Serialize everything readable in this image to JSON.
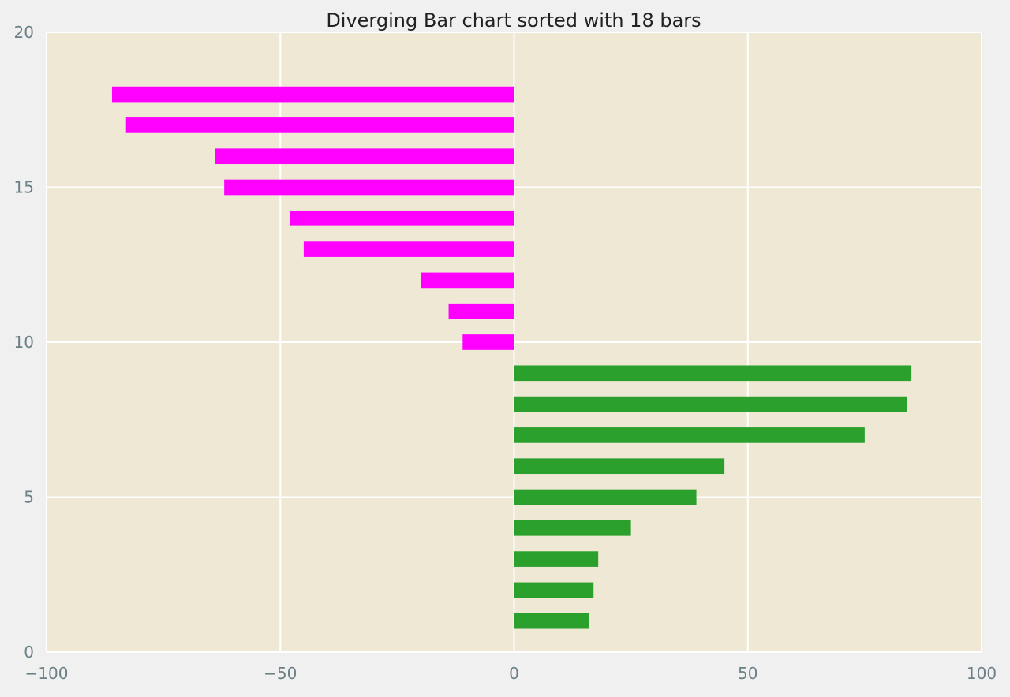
{
  "chart_data": {
    "type": "bar",
    "orientation": "horizontal",
    "title": "Diverging Bar chart sorted with 18 bars",
    "xlabel": "",
    "ylabel": "",
    "xlim": [
      -100,
      100
    ],
    "ylim": [
      0,
      20
    ],
    "xticks": [
      -100,
      -50,
      0,
      50,
      100
    ],
    "xtick_labels": [
      "−100",
      "−50",
      "0",
      "50",
      "100"
    ],
    "yticks": [
      0,
      5,
      10,
      15,
      20
    ],
    "ytick_labels": [
      "0",
      "5",
      "10",
      "15",
      "20"
    ],
    "grid": true,
    "legend": "none",
    "bar_height": 0.5,
    "colors": {
      "negative": "#ff00ff",
      "positive": "#2ca02c",
      "plot_background": "#eee8d5",
      "figure_background": "#f0f0f0",
      "grid": "#ffffff"
    },
    "y": [
      1,
      2,
      3,
      4,
      5,
      6,
      7,
      8,
      9,
      10,
      11,
      12,
      13,
      14,
      15,
      16,
      17,
      18
    ],
    "values": [
      16,
      17,
      18,
      25,
      39,
      45,
      75,
      84,
      85,
      -11,
      -14,
      -20,
      -45,
      -48,
      -62,
      -64,
      -83,
      -86
    ]
  }
}
